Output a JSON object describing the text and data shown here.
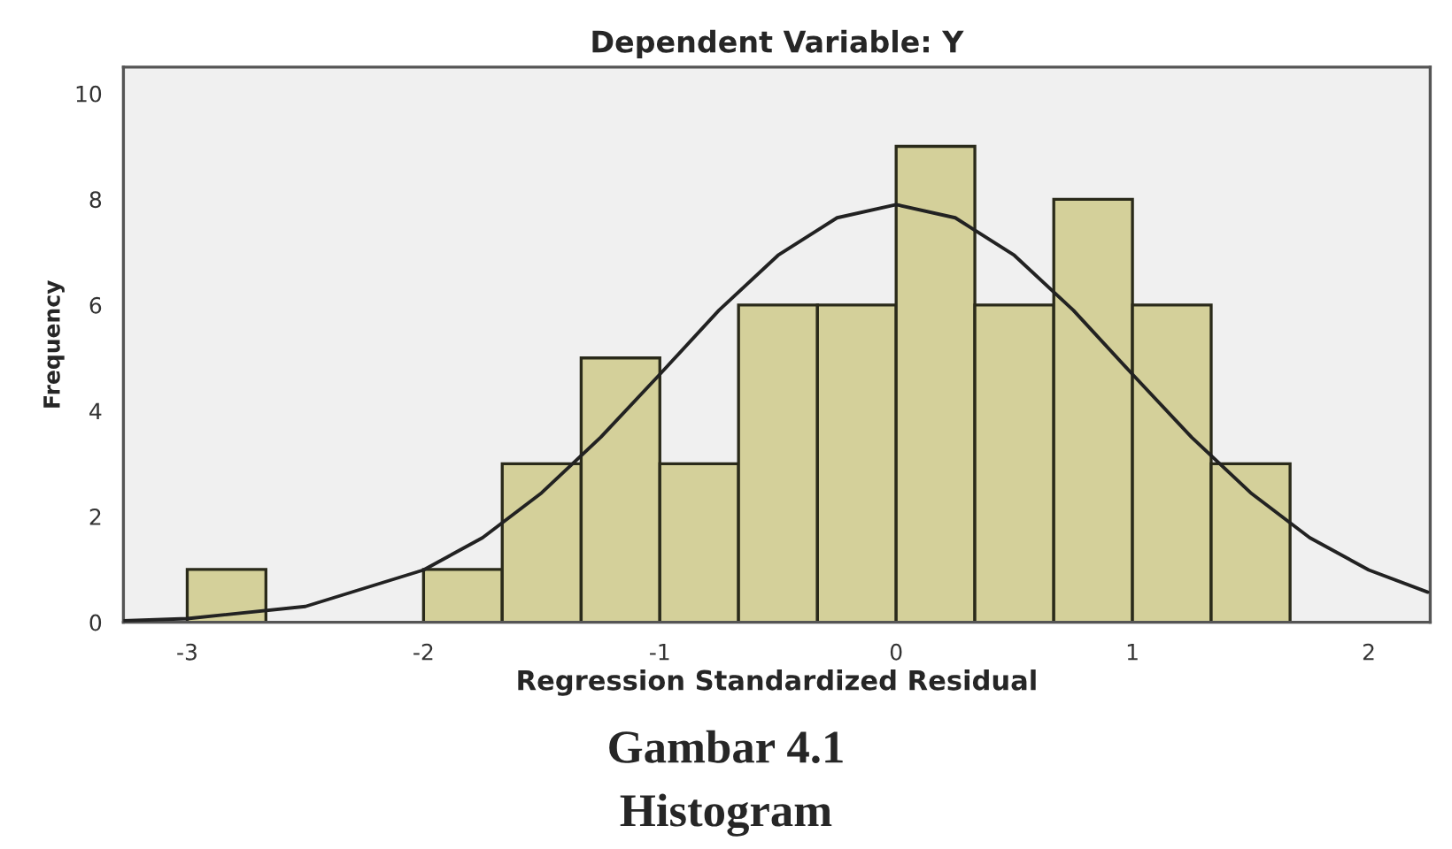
{
  "chart_data": {
    "type": "histogram",
    "title": "Dependent Variable: Y",
    "xlabel": "Regression Standardized Residual",
    "ylabel": "Frequency",
    "bins": [
      -3,
      -2.667,
      -2.333,
      -2,
      -1.667,
      -1.333,
      -1,
      -0.667,
      -0.333,
      0,
      0.333,
      0.667,
      1,
      1.333,
      1.667
    ],
    "values": [
      1,
      0,
      0,
      1,
      3,
      5,
      3,
      6,
      6,
      9,
      6,
      8,
      6,
      3
    ],
    "color": "#d4d09a",
    "series": [
      {
        "type": "line",
        "color": "#222222",
        "x": [
          -3.27,
          -3,
          -2.5,
          -2,
          -1.75,
          -1.5,
          -1.25,
          -1,
          -0.75,
          -0.5,
          -0.25,
          0,
          0.25,
          0.5,
          0.75,
          1,
          1.25,
          1.5,
          1.75,
          2,
          2.25
        ],
        "values": [
          0.03,
          0.07,
          0.3,
          0.99,
          1.6,
          2.45,
          3.5,
          4.69,
          5.9,
          6.94,
          7.65,
          7.9,
          7.65,
          6.94,
          5.9,
          4.69,
          3.5,
          2.45,
          1.6,
          0.99,
          0.57
        ]
      }
    ],
    "xlim": [
      -3.27,
      2.26
    ],
    "ylim": [
      0,
      10.5
    ],
    "xticks": [
      -3,
      -2,
      -1,
      0,
      1,
      2
    ],
    "yticks": [
      0,
      2,
      4,
      6,
      8,
      10
    ],
    "grid": false,
    "annotations": [
      "Gambar 4.1",
      "Histogram"
    ]
  }
}
